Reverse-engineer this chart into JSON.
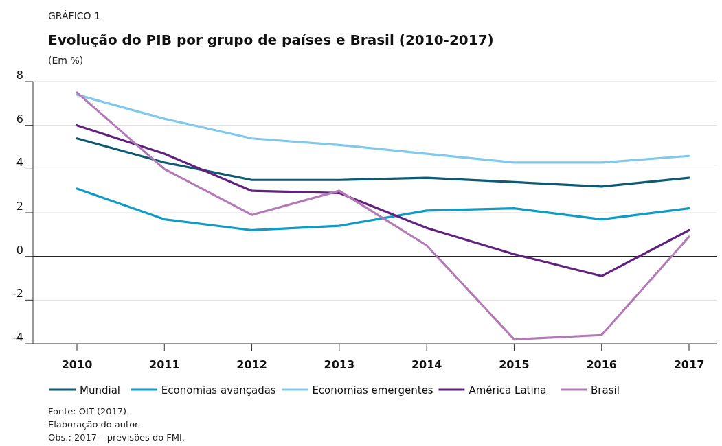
{
  "chart_data": {
    "type": "line",
    "title": "Evolução do PIB por grupo de países e Brasil (2010-2017)",
    "subtitle": "(Em %)",
    "categories": [
      "2010",
      "2011",
      "2012",
      "2013",
      "2014",
      "2015",
      "2016",
      "2017"
    ],
    "series": [
      {
        "name": "Mundial",
        "color": "#0e5a72",
        "values": [
          5.4,
          4.3,
          3.5,
          3.5,
          3.6,
          3.4,
          3.2,
          3.6
        ]
      },
      {
        "name": "Economias avançadas",
        "color": "#0f9bc4",
        "values": [
          3.1,
          1.7,
          1.2,
          1.4,
          2.1,
          2.2,
          1.7,
          2.2
        ]
      },
      {
        "name": "Economias emergentes",
        "color": "#80c9ec",
        "values": [
          7.4,
          6.3,
          5.4,
          5.1,
          4.7,
          4.3,
          4.3,
          4.6
        ]
      },
      {
        "name": "América Latina",
        "color": "#61217d",
        "values": [
          6.0,
          4.7,
          3.0,
          2.9,
          1.3,
          0.1,
          -0.9,
          1.2
        ]
      },
      {
        "name": "Brasil",
        "color": "#b47ab8",
        "values": [
          7.5,
          4.0,
          1.9,
          3.0,
          0.5,
          -3.8,
          -3.6,
          0.9
        ]
      }
    ],
    "ylim": [
      -4,
      8
    ],
    "yticks": [
      -4,
      -2,
      0,
      2,
      4,
      6,
      8
    ],
    "grid": "y",
    "legend": "bottom",
    "line_style": "solid",
    "marker": "none",
    "ref_lines": [
      {
        "axis": "y",
        "value": 0,
        "color": "#222222"
      }
    ],
    "annotations": [
      "GRÁFICO 1",
      "Fonte: OIT (2017).",
      "Elaboração do autor.",
      "Obs.: 2017 – previsões do FMI."
    ]
  }
}
